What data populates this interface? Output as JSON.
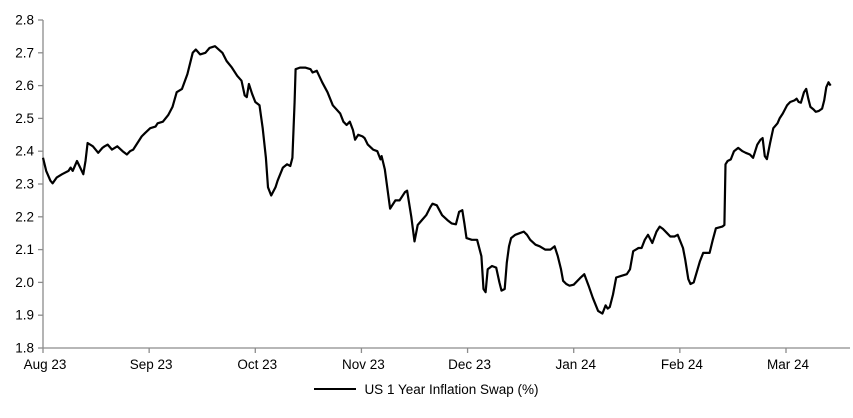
{
  "chart_data": {
    "type": "line",
    "title": "",
    "xlabel": "",
    "ylabel": "",
    "ylim": [
      1.8,
      2.8
    ],
    "y_ticks": [
      2.8,
      2.7,
      2.6,
      2.5,
      2.4,
      2.3,
      2.2,
      2.1,
      2.0,
      1.9,
      1.8
    ],
    "x_tick_labels": [
      "Aug 23",
      "Sep 23",
      "Oct 23",
      "Nov 23",
      "Dec 23",
      "Jan 24",
      "Feb 24",
      "Mar 24"
    ],
    "x_axis_extent_months": 7.6,
    "grid": false,
    "legend_position": "bottom-center",
    "legend_label": "US 1 Year Inflation Swap (%)",
    "series": [
      {
        "name": "US 1 Year Inflation Swap (%)",
        "color": "#000000",
        "x_unit": "months since Aug 2023 tick",
        "points": [
          [
            0.0,
            2.38
          ],
          [
            0.03,
            2.34
          ],
          [
            0.07,
            2.31
          ],
          [
            0.09,
            2.302
          ],
          [
            0.13,
            2.32
          ],
          [
            0.18,
            2.33
          ],
          [
            0.24,
            2.34
          ],
          [
            0.26,
            2.35
          ],
          [
            0.28,
            2.34
          ],
          [
            0.32,
            2.37
          ],
          [
            0.35,
            2.35
          ],
          [
            0.38,
            2.33
          ],
          [
            0.4,
            2.37
          ],
          [
            0.42,
            2.425
          ],
          [
            0.47,
            2.415
          ],
          [
            0.52,
            2.395
          ],
          [
            0.56,
            2.41
          ],
          [
            0.58,
            2.415
          ],
          [
            0.61,
            2.42
          ],
          [
            0.65,
            2.405
          ],
          [
            0.7,
            2.415
          ],
          [
            0.75,
            2.4
          ],
          [
            0.79,
            2.39
          ],
          [
            0.82,
            2.4
          ],
          [
            0.85,
            2.405
          ],
          [
            0.9,
            2.43
          ],
          [
            0.93,
            2.445
          ],
          [
            0.96,
            2.455
          ],
          [
            1.01,
            2.47
          ],
          [
            1.06,
            2.475
          ],
          [
            1.08,
            2.485
          ],
          [
            1.13,
            2.49
          ],
          [
            1.18,
            2.51
          ],
          [
            1.22,
            2.535
          ],
          [
            1.26,
            2.58
          ],
          [
            1.31,
            2.59
          ],
          [
            1.36,
            2.635
          ],
          [
            1.41,
            2.7
          ],
          [
            1.44,
            2.71
          ],
          [
            1.48,
            2.695
          ],
          [
            1.53,
            2.7
          ],
          [
            1.57,
            2.715
          ],
          [
            1.62,
            2.72
          ],
          [
            1.69,
            2.7
          ],
          [
            1.73,
            2.675
          ],
          [
            1.78,
            2.655
          ],
          [
            1.83,
            2.63
          ],
          [
            1.87,
            2.615
          ],
          [
            1.9,
            2.57
          ],
          [
            1.92,
            2.565
          ],
          [
            1.94,
            2.605
          ],
          [
            1.97,
            2.575
          ],
          [
            2.0,
            2.55
          ],
          [
            2.04,
            2.54
          ],
          [
            2.07,
            2.47
          ],
          [
            2.1,
            2.38
          ],
          [
            2.12,
            2.29
          ],
          [
            2.15,
            2.265
          ],
          [
            2.19,
            2.29
          ],
          [
            2.21,
            2.31
          ],
          [
            2.26,
            2.35
          ],
          [
            2.3,
            2.36
          ],
          [
            2.33,
            2.355
          ],
          [
            2.35,
            2.38
          ],
          [
            2.37,
            2.55
          ],
          [
            2.38,
            2.65
          ],
          [
            2.42,
            2.655
          ],
          [
            2.47,
            2.655
          ],
          [
            2.52,
            2.65
          ],
          [
            2.54,
            2.64
          ],
          [
            2.58,
            2.645
          ],
          [
            2.63,
            2.61
          ],
          [
            2.68,
            2.58
          ],
          [
            2.73,
            2.54
          ],
          [
            2.8,
            2.515
          ],
          [
            2.83,
            2.49
          ],
          [
            2.86,
            2.48
          ],
          [
            2.89,
            2.49
          ],
          [
            2.92,
            2.465
          ],
          [
            2.94,
            2.435
          ],
          [
            2.97,
            2.45
          ],
          [
            3.01,
            2.445
          ],
          [
            3.03,
            2.44
          ],
          [
            3.06,
            2.42
          ],
          [
            3.11,
            2.405
          ],
          [
            3.15,
            2.4
          ],
          [
            3.18,
            2.375
          ],
          [
            3.19,
            2.385
          ],
          [
            3.22,
            2.345
          ],
          [
            3.27,
            2.225
          ],
          [
            3.32,
            2.25
          ],
          [
            3.36,
            2.25
          ],
          [
            3.41,
            2.275
          ],
          [
            3.43,
            2.28
          ],
          [
            3.47,
            2.2
          ],
          [
            3.5,
            2.125
          ],
          [
            3.53,
            2.175
          ],
          [
            3.57,
            2.19
          ],
          [
            3.61,
            2.205
          ],
          [
            3.65,
            2.23
          ],
          [
            3.67,
            2.24
          ],
          [
            3.71,
            2.235
          ],
          [
            3.76,
            2.205
          ],
          [
            3.81,
            2.19
          ],
          [
            3.85,
            2.18
          ],
          [
            3.89,
            2.177
          ],
          [
            3.92,
            2.215
          ],
          [
            3.95,
            2.22
          ],
          [
            3.97,
            2.18
          ],
          [
            3.99,
            2.135
          ],
          [
            4.04,
            2.13
          ],
          [
            4.09,
            2.13
          ],
          [
            4.13,
            2.08
          ],
          [
            4.15,
            1.98
          ],
          [
            4.17,
            1.97
          ],
          [
            4.19,
            2.04
          ],
          [
            4.23,
            2.05
          ],
          [
            4.27,
            2.045
          ],
          [
            4.3,
            2.0
          ],
          [
            4.32,
            1.975
          ],
          [
            4.35,
            1.98
          ],
          [
            4.37,
            2.06
          ],
          [
            4.39,
            2.11
          ],
          [
            4.41,
            2.135
          ],
          [
            4.45,
            2.145
          ],
          [
            4.49,
            2.15
          ],
          [
            4.53,
            2.155
          ],
          [
            4.56,
            2.145
          ],
          [
            4.59,
            2.13
          ],
          [
            4.64,
            2.115
          ],
          [
            4.68,
            2.11
          ],
          [
            4.73,
            2.1
          ],
          [
            4.78,
            2.1
          ],
          [
            4.8,
            2.105
          ],
          [
            4.82,
            2.11
          ],
          [
            4.85,
            2.08
          ],
          [
            4.88,
            2.04
          ],
          [
            4.9,
            2.005
          ],
          [
            4.93,
            1.995
          ],
          [
            4.96,
            1.99
          ],
          [
            5.0,
            1.993
          ],
          [
            5.06,
            2.013
          ],
          [
            5.1,
            2.025
          ],
          [
            5.14,
            1.99
          ],
          [
            5.18,
            1.953
          ],
          [
            5.23,
            1.913
          ],
          [
            5.27,
            1.905
          ],
          [
            5.3,
            1.93
          ],
          [
            5.32,
            1.92
          ],
          [
            5.34,
            1.925
          ],
          [
            5.37,
            1.963
          ],
          [
            5.4,
            2.015
          ],
          [
            5.45,
            2.02
          ],
          [
            5.5,
            2.025
          ],
          [
            5.53,
            2.04
          ],
          [
            5.56,
            2.095
          ],
          [
            5.61,
            2.105
          ],
          [
            5.64,
            2.105
          ],
          [
            5.67,
            2.13
          ],
          [
            5.7,
            2.145
          ],
          [
            5.74,
            2.12
          ],
          [
            5.78,
            2.155
          ],
          [
            5.81,
            2.17
          ],
          [
            5.84,
            2.163
          ],
          [
            5.88,
            2.15
          ],
          [
            5.91,
            2.14
          ],
          [
            5.95,
            2.14
          ],
          [
            5.98,
            2.145
          ],
          [
            6.03,
            2.105
          ],
          [
            6.05,
            2.07
          ],
          [
            6.08,
            2.01
          ],
          [
            6.1,
            1.995
          ],
          [
            6.13,
            2.0
          ],
          [
            6.19,
            2.065
          ],
          [
            6.22,
            2.09
          ],
          [
            6.26,
            2.09
          ],
          [
            6.28,
            2.09
          ],
          [
            6.31,
            2.13
          ],
          [
            6.34,
            2.165
          ],
          [
            6.4,
            2.17
          ],
          [
            6.42,
            2.175
          ],
          [
            6.43,
            2.36
          ],
          [
            6.45,
            2.37
          ],
          [
            6.48,
            2.375
          ],
          [
            6.51,
            2.4
          ],
          [
            6.55,
            2.41
          ],
          [
            6.59,
            2.4
          ],
          [
            6.62,
            2.395
          ],
          [
            6.66,
            2.39
          ],
          [
            6.69,
            2.38
          ],
          [
            6.73,
            2.42
          ],
          [
            6.76,
            2.435
          ],
          [
            6.78,
            2.44
          ],
          [
            6.8,
            2.385
          ],
          [
            6.82,
            2.376
          ],
          [
            6.85,
            2.425
          ],
          [
            6.88,
            2.47
          ],
          [
            6.92,
            2.485
          ],
          [
            6.94,
            2.5
          ],
          [
            6.97,
            2.515
          ],
          [
            7.01,
            2.54
          ],
          [
            7.04,
            2.55
          ],
          [
            7.08,
            2.555
          ],
          [
            7.1,
            2.56
          ],
          [
            7.12,
            2.55
          ],
          [
            7.14,
            2.548
          ],
          [
            7.17,
            2.58
          ],
          [
            7.19,
            2.59
          ],
          [
            7.21,
            2.56
          ],
          [
            7.23,
            2.535
          ],
          [
            7.26,
            2.527
          ],
          [
            7.28,
            2.52
          ],
          [
            7.31,
            2.523
          ],
          [
            7.34,
            2.53
          ],
          [
            7.36,
            2.555
          ],
          [
            7.38,
            2.595
          ],
          [
            7.4,
            2.61
          ],
          [
            7.42,
            2.6
          ]
        ]
      }
    ]
  },
  "colors": {
    "background": "#ffffff",
    "axis": "#8c8c8c",
    "tick": "#8c8c8c",
    "text": "#000000",
    "series_line": "#000000"
  }
}
